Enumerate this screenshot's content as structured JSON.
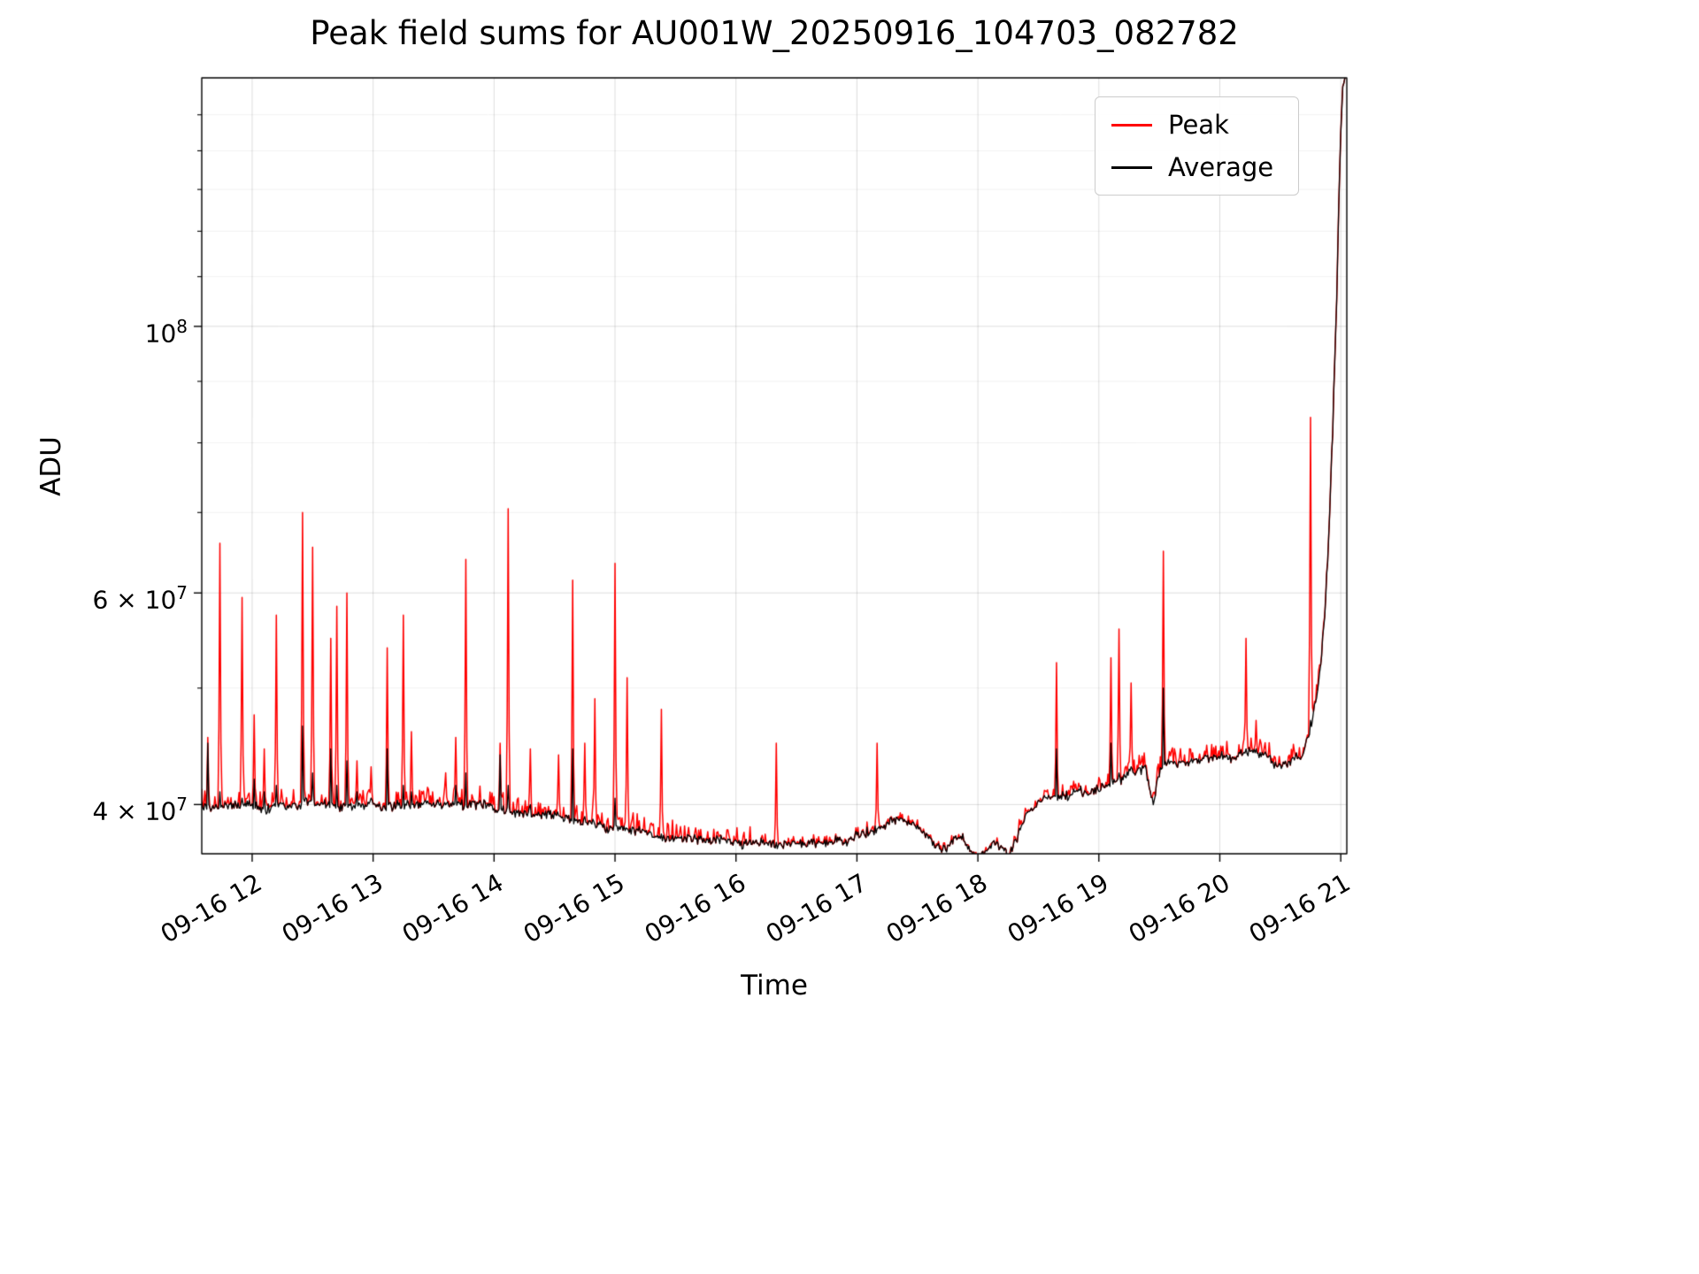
{
  "chart_data": {
    "type": "line",
    "title": "Peak field sums for AU001W_20250916_104703_082782",
    "xlabel": "Time",
    "ylabel": "ADU",
    "yscale": "log",
    "grid": true,
    "legend_position": "upper right",
    "xlim_minutes": [
      695,
      1263
    ],
    "ylim": [
      36400000.0,
      161000000.0
    ],
    "xticks": [
      {
        "minute": 720,
        "label": "09-16 12"
      },
      {
        "minute": 780,
        "label": "09-16 13"
      },
      {
        "minute": 840,
        "label": "09-16 14"
      },
      {
        "minute": 900,
        "label": "09-16 15"
      },
      {
        "minute": 960,
        "label": "09-16 16"
      },
      {
        "minute": 1020,
        "label": "09-16 17"
      },
      {
        "minute": 1080,
        "label": "09-16 18"
      },
      {
        "minute": 1140,
        "label": "09-16 19"
      },
      {
        "minute": 1200,
        "label": "09-16 20"
      },
      {
        "minute": 1260,
        "label": "09-16 21"
      }
    ],
    "yticks": [
      {
        "value": 40000000.0,
        "mantissa": "4 × 10",
        "exponent": "7"
      },
      {
        "value": 60000000.0,
        "mantissa": "6 × 10",
        "exponent": "7"
      },
      {
        "value": 100000000.0,
        "mantissa": "10",
        "exponent": "8"
      }
    ],
    "yticks_minor": [
      50000000.0,
      70000000.0,
      80000000.0,
      90000000.0,
      110000000.0,
      120000000.0,
      130000000.0,
      140000000.0,
      150000000.0
    ],
    "series": [
      {
        "name": "Peak",
        "color": "#ff0000"
      },
      {
        "name": "Average",
        "color": "#000000"
      }
    ],
    "noise_pct": 0.011,
    "red_fuzz": [
      {
        "t0": 695,
        "t1": 975,
        "amp": 0.03
      },
      {
        "t0": 975,
        "t1": 1100,
        "amp": 0.01
      },
      {
        "t0": 1100,
        "t1": 1140,
        "amp": 0.018
      },
      {
        "t0": 1140,
        "t1": 1250,
        "amp": 0.028
      },
      {
        "t0": 1250,
        "t1": 1263,
        "amp": 0.008
      }
    ],
    "average_baseline": [
      [
        695,
        40000000.0
      ],
      [
        705,
        39800000.0
      ],
      [
        715,
        40000000.0
      ],
      [
        725,
        39800000.0
      ],
      [
        735,
        40000000.0
      ],
      [
        743,
        40300000.0
      ],
      [
        750,
        40500000.0
      ],
      [
        758,
        40200000.0
      ],
      [
        768,
        40000000.0
      ],
      [
        780,
        40000000.0
      ],
      [
        792,
        40200000.0
      ],
      [
        805,
        40100000.0
      ],
      [
        820,
        39900000.0
      ],
      [
        835,
        39700000.0
      ],
      [
        850,
        39400000.0
      ],
      [
        865,
        39100000.0
      ],
      [
        880,
        38700000.0
      ],
      [
        895,
        38300000.0
      ],
      [
        910,
        37900000.0
      ],
      [
        925,
        37600000.0
      ],
      [
        940,
        37300000.0
      ],
      [
        955,
        37100000.0
      ],
      [
        970,
        36900000.0
      ],
      [
        985,
        36900000.0
      ],
      [
        1000,
        37000000.0
      ],
      [
        1012,
        37200000.0
      ],
      [
        1022,
        37600000.0
      ],
      [
        1030,
        38000000.0
      ],
      [
        1036,
        38500000.0
      ],
      [
        1042,
        38800000.0
      ],
      [
        1048,
        38600000.0
      ],
      [
        1054,
        38000000.0
      ],
      [
        1060,
        36800000.0
      ],
      [
        1064,
        36600000.0
      ],
      [
        1068,
        37400000.0
      ],
      [
        1072,
        37700000.0
      ],
      [
        1076,
        36800000.0
      ],
      [
        1080,
        36200000.0
      ],
      [
        1084,
        36800000.0
      ],
      [
        1088,
        37400000.0
      ],
      [
        1092,
        36800000.0
      ],
      [
        1095,
        36200000.0
      ],
      [
        1098,
        37000000.0
      ],
      [
        1101,
        38000000.0
      ],
      [
        1104,
        39200000.0
      ],
      [
        1108,
        40000000.0
      ],
      [
        1112,
        40400000.0
      ],
      [
        1116,
        40600000.0
      ],
      [
        1120,
        40800000.0
      ],
      [
        1125,
        40500000.0
      ],
      [
        1130,
        40900000.0
      ],
      [
        1134,
        40400000.0
      ],
      [
        1138,
        40800000.0
      ],
      [
        1142,
        41100000.0
      ],
      [
        1148,
        41600000.0
      ],
      [
        1154,
        42100000.0
      ],
      [
        1160,
        42600000.0
      ],
      [
        1163,
        42700000.0
      ],
      [
        1165,
        41200000.0
      ],
      [
        1167,
        39800000.0
      ],
      [
        1169,
        41800000.0
      ],
      [
        1172,
        42900000.0
      ],
      [
        1176,
        43100000.0
      ],
      [
        1182,
        43100000.0
      ],
      [
        1190,
        43300000.0
      ],
      [
        1200,
        43500000.0
      ],
      [
        1208,
        43800000.0
      ],
      [
        1215,
        44000000.0
      ],
      [
        1222,
        43800000.0
      ],
      [
        1227,
        43100000.0
      ],
      [
        1231,
        42900000.0
      ],
      [
        1234,
        43500000.0
      ],
      [
        1238,
        44000000.0
      ],
      [
        1241,
        44300000.0
      ],
      [
        1244,
        45500000.0
      ],
      [
        1246,
        47000000.0
      ],
      [
        1248,
        49000000.0
      ],
      [
        1250,
        52000000.0
      ],
      [
        1252,
        57000000.0
      ],
      [
        1254,
        66000000.0
      ],
      [
        1256,
        82000000.0
      ],
      [
        1258,
        105000000.0
      ],
      [
        1259,
        125000000.0
      ],
      [
        1260,
        145000000.0
      ],
      [
        1261,
        158000000.0
      ],
      [
        1263,
        164000000.0
      ]
    ],
    "spikes": [
      [
        698,
        45500000.0,
        45000000.0
      ],
      [
        704,
        66000000.0,
        41000000.0
      ],
      [
        715,
        59500000.0,
        40500000.0
      ],
      [
        721,
        47500000.0,
        42000000.0
      ],
      [
        726,
        44500000.0,
        41000000.0
      ],
      [
        732,
        57500000.0,
        41500000.0
      ],
      [
        745,
        70000000.0,
        46500000.0
      ],
      [
        750,
        65500000.0,
        42500000.0
      ],
      [
        759,
        55000000.0,
        44500000.0
      ],
      [
        762,
        58500000.0,
        41500000.0
      ],
      [
        767,
        60000000.0,
        43500000.0
      ],
      [
        772,
        43500000.0,
        41000000.0
      ],
      [
        779,
        43000000.0,
        40500000.0
      ],
      [
        787,
        54000000.0,
        44500000.0
      ],
      [
        795,
        57500000.0,
        41500000.0
      ],
      [
        799,
        46000000.0,
        41000000.0
      ],
      [
        816,
        42500000.0,
        39800000.0
      ],
      [
        821,
        45500000.0,
        41500000.0
      ],
      [
        826,
        64000000.0,
        42500000.0
      ],
      [
        843,
        45000000.0,
        44000000.0
      ],
      [
        847,
        70500000.0,
        41500000.0
      ],
      [
        858,
        44500000.0,
        40000000.0
      ],
      [
        872,
        44000000.0,
        39200000.0
      ],
      [
        879,
        61500000.0,
        44500000.0
      ],
      [
        885,
        45000000.0,
        38700000.0
      ],
      [
        890,
        49000000.0,
        38500000.0
      ],
      [
        900,
        63500000.0,
        40500000.0
      ],
      [
        906,
        51000000.0,
        38200000.0
      ],
      [
        923,
        48000000.0,
        37800000.0
      ],
      [
        980,
        45000000.0,
        37200000.0
      ],
      [
        1030,
        45000000.0,
        38200000.0
      ],
      [
        1119,
        52500000.0,
        44500000.0
      ],
      [
        1146,
        53000000.0,
        45000000.0
      ],
      [
        1150,
        56000000.0,
        42500000.0
      ],
      [
        1156,
        50500000.0,
        43000000.0
      ],
      [
        1172,
        65000000.0,
        50000000.0
      ],
      [
        1213,
        55000000.0,
        44500000.0
      ],
      [
        1218,
        47000000.0,
        44500000.0
      ],
      [
        1245,
        84000000.0,
        47000000.0
      ]
    ]
  }
}
